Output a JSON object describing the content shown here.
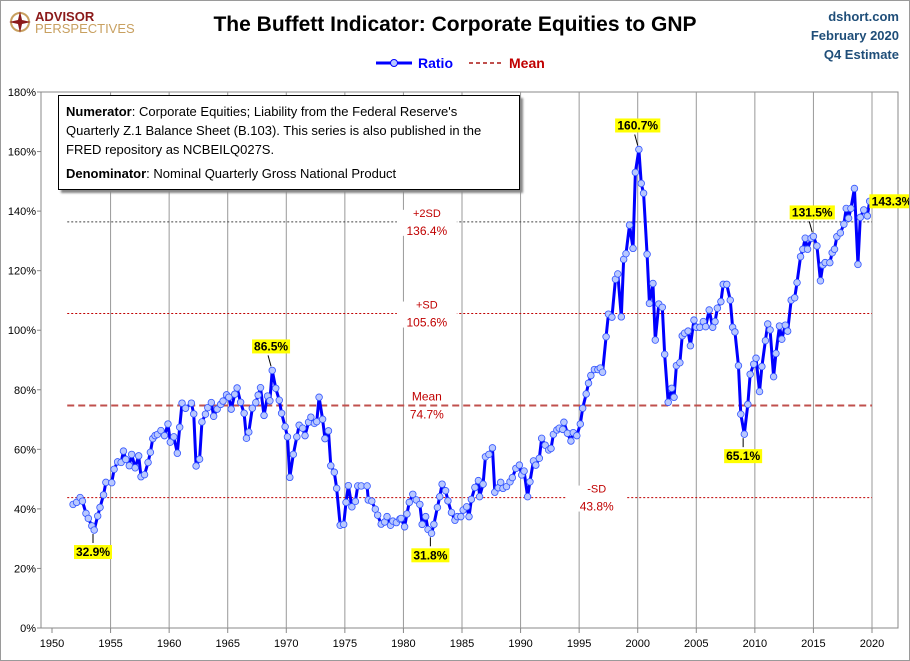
{
  "header": {
    "title": "The Buffett Indicator: Corporate Equities to GNP",
    "logo_line1": "ADVISOR",
    "logo_line2": "PERSPECTIVES",
    "source": "dshort.com",
    "date": "February 2020",
    "estimate": "Q4 Estimate"
  },
  "note": {
    "numerator_label": "Numerator",
    "numerator_text": ": Corporate Equities; Liability from the Federal Reserve's Quarterly Z.1 Balance Sheet (B.103). This series is also published in the FRED repository  as NCBEILQ027S.",
    "denominator_label": "Denominator",
    "denominator_text": ": Nominal Quarterly Gross National Product"
  },
  "chart_data": {
    "type": "line",
    "title": "The Buffett Indicator: Corporate Equities to GNP",
    "legend": [
      "Ratio",
      "Mean"
    ],
    "legend_placement": "top-center",
    "colors": {
      "ratio": "#0000ff",
      "marker": "#b8c8ff",
      "mean": "#c0504d",
      "sd": "#c00000",
      "label_bg": "#ffff00"
    },
    "xlim": [
      1950,
      2020
    ],
    "ylim": [
      0,
      180
    ],
    "grid": "vertical",
    "x_ticks": [
      "1950",
      "1955",
      "1960",
      "1965",
      "1970",
      "1975",
      "1980",
      "1985",
      "1990",
      "1995",
      "2000",
      "2005",
      "2010",
      "2015",
      "2020"
    ],
    "y_ticks": [
      "0%",
      "20%",
      "40%",
      "60%",
      "80%",
      "100%",
      "120%",
      "140%",
      "160%",
      "180%"
    ],
    "reference_lines": [
      {
        "name": "+2SD",
        "value": 136.4,
        "label": "+2SD",
        "value_label": "136.4%",
        "label_year": 1982
      },
      {
        "name": "+SD",
        "value": 105.6,
        "label": "+SD",
        "value_label": "105.6%",
        "label_year": 1982
      },
      {
        "name": "Mean",
        "value": 74.7,
        "label": "Mean",
        "value_label": "74.7%",
        "label_year": 1982
      },
      {
        "name": "-SD",
        "value": 43.8,
        "label": "-SD",
        "value_label": "43.8%",
        "label_year": 1996.5
      }
    ],
    "annotations": [
      {
        "year": 1953.5,
        "value": 32.9,
        "label": "32.9%",
        "pos": "below"
      },
      {
        "year": 1968.7,
        "value": 86.5,
        "label": "86.5%",
        "pos": "above"
      },
      {
        "year": 1982.3,
        "value": 31.8,
        "label": "31.8%",
        "pos": "below"
      },
      {
        "year": 2000.0,
        "value": 160.7,
        "label": "160.7%",
        "pos": "above"
      },
      {
        "year": 2009.0,
        "value": 65.1,
        "label": "65.1%",
        "pos": "below"
      },
      {
        "year": 2014.9,
        "value": 131.5,
        "label": "131.5%",
        "pos": "above"
      },
      {
        "year": 2020.0,
        "value": 143.3,
        "label": "143.3%",
        "pos": "right"
      }
    ],
    "x": [
      1951.8,
      1952.1,
      1952.4,
      1952.6,
      1952.9,
      1953.1,
      1953.4,
      1953.6,
      1953.9,
      1954.1,
      1954.4,
      1954.6,
      1955.1,
      1955.3,
      1955.6,
      1955.9,
      1956.1,
      1956.3,
      1956.6,
      1956.8,
      1957.1,
      1957.4,
      1957.6,
      1957.9,
      1958.2,
      1958.4,
      1958.6,
      1958.8,
      1959.0,
      1959.3,
      1959.6,
      1959.9,
      1960.1,
      1960.4,
      1960.7,
      1960.9,
      1961.1,
      1961.4,
      1961.9,
      1962.1,
      1962.3,
      1962.6,
      1962.8,
      1963.1,
      1963.3,
      1963.6,
      1963.8,
      1964.1,
      1964.4,
      1964.6,
      1964.9,
      1965.1,
      1965.3,
      1965.6,
      1965.8,
      1966.1,
      1966.4,
      1966.6,
      1966.8,
      1967.1,
      1967.4,
      1967.6,
      1967.8,
      1968.1,
      1968.4,
      1968.6,
      1968.8,
      1969.1,
      1969.4,
      1969.6,
      1969.9,
      1970.1,
      1970.3,
      1970.6,
      1970.9,
      1971.1,
      1971.4,
      1971.6,
      1971.9,
      1972.1,
      1972.4,
      1972.6,
      1972.8,
      1973.1,
      1973.3,
      1973.6,
      1973.8,
      1974.1,
      1974.3,
      1974.6,
      1974.9,
      1975.1,
      1975.3,
      1975.6,
      1975.9,
      1976.1,
      1976.4,
      1976.9,
      1977.0,
      1977.3,
      1977.6,
      1977.8,
      1978.1,
      1978.4,
      1978.6,
      1978.9,
      1979.1,
      1979.4,
      1979.7,
      1979.8,
      1980.1,
      1980.3,
      1980.5,
      1980.8,
      1981.1,
      1981.4,
      1981.6,
      1981.9,
      1982.1,
      1982.4,
      1982.6,
      1982.9,
      1983.1,
      1983.3,
      1983.6,
      1983.8,
      1984.1,
      1984.4,
      1984.6,
      1984.9,
      1985.1,
      1985.4,
      1985.6,
      1985.8,
      1986.1,
      1986.4,
      1986.5,
      1986.8,
      1987.0,
      1987.3,
      1987.6,
      1987.8,
      1988.1,
      1988.3,
      1988.5,
      1988.8,
      1989.1,
      1989.3,
      1989.6,
      1989.9,
      1990.1,
      1990.3,
      1990.6,
      1990.8,
      1991.1,
      1991.3,
      1991.6,
      1991.8,
      1992.1,
      1992.4,
      1992.6,
      1992.8,
      1993.1,
      1993.3,
      1993.6,
      1993.7,
      1994.0,
      1994.3,
      1994.5,
      1994.8,
      1995.1,
      1995.3,
      1995.6,
      1995.8,
      1996.0,
      1996.3,
      1996.6,
      1996.8,
      1997.0,
      1997.3,
      1997.5,
      1997.8,
      1998.1,
      1998.3,
      1998.6,
      1998.8,
      1999.0,
      1999.3,
      1999.6,
      1999.8,
      2000.1,
      2000.3,
      2000.5,
      2000.8,
      2001.0,
      2001.3,
      2001.5,
      2001.8,
      2002.1,
      2002.3,
      2002.6,
      2002.9,
      2003.1,
      2003.3,
      2003.6,
      2003.8,
      2004.0,
      2004.3,
      2004.5,
      2004.8,
      2005.0,
      2005.3,
      2005.6,
      2005.8,
      2006.1,
      2006.4,
      2006.6,
      2006.8,
      2007.1,
      2007.3,
      2007.6,
      2007.9,
      2008.1,
      2008.3,
      2008.6,
      2008.8,
      2009.1,
      2009.4,
      2009.6,
      2009.9,
      2010.1,
      2010.4,
      2010.6,
      2010.9,
      2011.1,
      2011.3,
      2011.6,
      2011.8,
      2012.1,
      2012.3,
      2012.6,
      2012.8,
      2013.1,
      2013.4,
      2013.6,
      2013.9,
      2014.1,
      2014.3,
      2014.5,
      2014.8,
      2015.0,
      2015.3,
      2015.6,
      2015.8,
      2016.0,
      2016.4,
      2016.6,
      2016.8,
      2017.0,
      2017.3,
      2017.6,
      2017.8,
      2018.0,
      2018.2,
      2018.5,
      2018.8,
      2019.0,
      2019.3,
      2019.6,
      2019.8
    ],
    "y": [
      41.5,
      42.2,
      43.8,
      42.6,
      38.5,
      36.8,
      34.3,
      32.9,
      37.6,
      40.5,
      44.7,
      48.9,
      48.8,
      53.3,
      55.8,
      55.6,
      59.4,
      56.6,
      54.5,
      58.3,
      53.8,
      57.8,
      50.8,
      51.5,
      55.6,
      59.0,
      63.6,
      64.6,
      65.0,
      66.3,
      64.6,
      68.5,
      62.4,
      64.2,
      58.7,
      67.4,
      75.5,
      73.8,
      75.5,
      71.9,
      54.4,
      56.7,
      69.2,
      71.8,
      74.0,
      75.7,
      71.1,
      73.5,
      75.1,
      76.2,
      78.3,
      77.5,
      73.5,
      78.5,
      80.6,
      75.8,
      72.1,
      63.7,
      65.8,
      73.8,
      75.7,
      78.2,
      80.7,
      71.4,
      77.9,
      76.3,
      86.5,
      80.5,
      76.5,
      72.1,
      67.6,
      64.2,
      50.6,
      58.3,
      64.2,
      68.1,
      67.1,
      64.6,
      69.1,
      70.8,
      68.7,
      69.3,
      77.5,
      70.1,
      63.6,
      66.2,
      54.5,
      52.3,
      46.9,
      34.5,
      34.8,
      42.2,
      47.8,
      40.7,
      42.5,
      47.7,
      47.7,
      47.7,
      43.0,
      42.6,
      39.9,
      37.9,
      34.9,
      35.6,
      37.4,
      34.5,
      35.9,
      35.4,
      36.6,
      36.8,
      34.0,
      38.3,
      42.2,
      44.9,
      43.0,
      41.5,
      34.8,
      37.4,
      33.1,
      31.8,
      34.8,
      40.5,
      44.1,
      48.3,
      46.1,
      42.7,
      38.8,
      36.2,
      37.4,
      37.4,
      39.6,
      40.7,
      37.4,
      43.2,
      47.2,
      49.5,
      44.1,
      48.3,
      57.5,
      58.3,
      60.5,
      45.6,
      47.1,
      48.9,
      46.9,
      47.5,
      49.1,
      50.5,
      53.6,
      54.7,
      51.4,
      52.7,
      44.1,
      49.1,
      56.1,
      54.7,
      57.0,
      63.7,
      61.4,
      59.8,
      60.3,
      65.0,
      66.5,
      67.1,
      66.7,
      69.1,
      65.4,
      62.8,
      65.6,
      64.6,
      68.5,
      73.8,
      78.6,
      82.2,
      84.8,
      86.8,
      86.8,
      87.3,
      85.9,
      97.8,
      105.4,
      104.4,
      117.1,
      118.9,
      104.5,
      123.8,
      125.7,
      135.3,
      127.5,
      153.0,
      160.7,
      149.3,
      146.0,
      125.5,
      109.0,
      115.7,
      96.7,
      108.8,
      107.7,
      91.9,
      75.8,
      80.5,
      77.5,
      88.1,
      89.1,
      98.1,
      99.0,
      99.7,
      94.8,
      103.4,
      101.0,
      101.0,
      102.9,
      101.2,
      106.8,
      101.0,
      102.9,
      107.4,
      109.6,
      115.4,
      115.4,
      110.1,
      101.0,
      99.4,
      88.1,
      71.8,
      65.1,
      75.1,
      85.2,
      88.6,
      90.6,
      79.4,
      87.8,
      96.5,
      102.1,
      100.1,
      84.4,
      92.2,
      101.4,
      97.0,
      101.7,
      99.7,
      110.1,
      110.9,
      116.0,
      124.7,
      127.2,
      130.9,
      127.2,
      130.9,
      131.5,
      128.3,
      116.6,
      121.9,
      122.7,
      122.7,
      126.0,
      127.2,
      131.4,
      132.7,
      135.6,
      140.9,
      137.6,
      140.9,
      147.6,
      122.1,
      137.9,
      140.4,
      138.4,
      143.3
    ]
  }
}
